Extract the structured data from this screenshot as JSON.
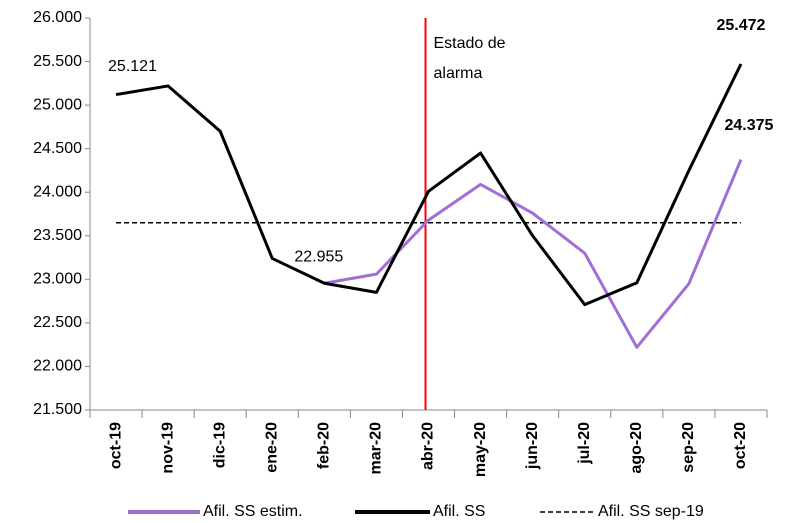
{
  "chart_data": {
    "type": "line",
    "categories": [
      "oct-19",
      "nov-19",
      "dic-19",
      "ene-20",
      "feb-20",
      "mar-20",
      "abr-20",
      "may-20",
      "jun-20",
      "jul-20",
      "ago-20",
      "sep-20",
      "oct-20"
    ],
    "series": [
      {
        "name": "Afil. SS estim.",
        "color": "#a06fd6",
        "values": [
          null,
          null,
          null,
          null,
          22955,
          23060,
          23680,
          24090,
          23760,
          23300,
          22220,
          22950,
          24375
        ],
        "value_labels": [
          null,
          null,
          null,
          null,
          null,
          null,
          null,
          null,
          null,
          null,
          null,
          null,
          "24.375"
        ]
      },
      {
        "name": "Afil. SS",
        "color": "#000000",
        "values": [
          25121,
          25220,
          24700,
          23240,
          22955,
          22850,
          24010,
          24450,
          23500,
          22710,
          22960,
          24250,
          25472
        ],
        "value_labels": [
          "25.121",
          null,
          null,
          null,
          "22.955",
          null,
          null,
          null,
          null,
          null,
          null,
          null,
          "25.472"
        ]
      },
      {
        "name": "Afil. SS sep-19",
        "color": "#000000",
        "dashed": true,
        "values": [
          23650,
          23650,
          23650,
          23650,
          23650,
          23650,
          23650,
          23650,
          23650,
          23650,
          23650,
          23650,
          23650
        ]
      }
    ],
    "annotation": {
      "lines": [
        "Estado de",
        "alarma"
      ],
      "x": "abr-20",
      "color": "#ff0000"
    },
    "ylim": [
      21500,
      26000
    ],
    "yticks": [
      {
        "value": 21500,
        "label": "21.500"
      },
      {
        "value": 22000,
        "label": "22.000"
      },
      {
        "value": 22500,
        "label": "22.500"
      },
      {
        "value": 23000,
        "label": "23.000"
      },
      {
        "value": 23500,
        "label": "23.500"
      },
      {
        "value": 24000,
        "label": "24.000"
      },
      {
        "value": 24500,
        "label": "24.500"
      },
      {
        "value": 25000,
        "label": "25.000"
      },
      {
        "value": 25500,
        "label": "25.500"
      },
      {
        "value": 26000,
        "label": "26.000"
      }
    ],
    "grid": false,
    "legend": "bottom"
  }
}
